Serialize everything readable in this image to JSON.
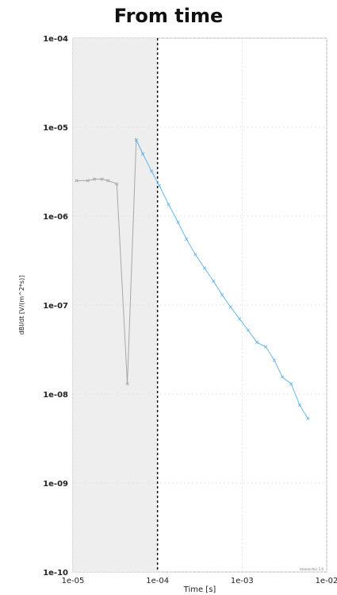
{
  "chart_data": {
    "type": "line",
    "title": "From time",
    "xlabel": "Time [s]",
    "ylabel": "dBl/dt [V/(m^2*s)]",
    "x_scale": "log",
    "y_scale": "log",
    "xlim": [
      1e-05,
      0.01
    ],
    "ylim": [
      1e-10,
      0.0001
    ],
    "x_tick_labels": [
      "1e-05",
      "1e-04",
      "1e-03",
      "1e-02"
    ],
    "y_tick_labels": [
      "1e-04",
      "1e-05",
      "1e-06",
      "1e-07",
      "1e-08",
      "1e-09",
      "1e-10"
    ],
    "grid": true,
    "shaded_region": [
      1e-05,
      0.0001
    ],
    "vertical_line_x": 0.0001,
    "colors": {
      "gated": "#a8a8a8",
      "active": "#66b8e8",
      "shade": "#eeeeee",
      "grid": "#dddddd"
    },
    "series": [
      {
        "style": "gated",
        "x": [
          1.1e-05,
          1.5e-05,
          1.8e-05,
          2.2e-05,
          2.6e-05,
          3.3e-05,
          4.4e-05,
          5.6e-05,
          6.7e-05
        ],
        "y": [
          2.5e-06,
          2.5e-06,
          2.6e-06,
          2.6e-06,
          2.5e-06,
          2.3e-06,
          1.3e-08,
          7.2e-06,
          5e-06
        ]
      },
      {
        "style": "active",
        "x": [
          5.6e-05,
          6.7e-05,
          8.5e-05,
          0.000105,
          0.000135,
          0.000175,
          0.00022,
          0.00028,
          0.00036,
          0.00046,
          0.00058,
          0.00073,
          0.00093,
          0.00118,
          0.0015,
          0.0019,
          0.0024,
          0.003,
          0.0038,
          0.0048,
          0.006
        ],
        "y": [
          7.2e-06,
          5e-06,
          3.2e-06,
          2.2e-06,
          1.35e-06,
          8.5e-07,
          5.5e-07,
          3.7e-07,
          2.6e-07,
          1.85e-07,
          1.3e-07,
          9.5e-08,
          7e-08,
          5.2e-08,
          3.8e-08,
          3.4e-08,
          2.4e-08,
          1.55e-08,
          1.3e-08,
          7.5e-09,
          5.3e-09
        ]
      }
    ],
    "footer_note": "nbsearcher 1.0"
  }
}
